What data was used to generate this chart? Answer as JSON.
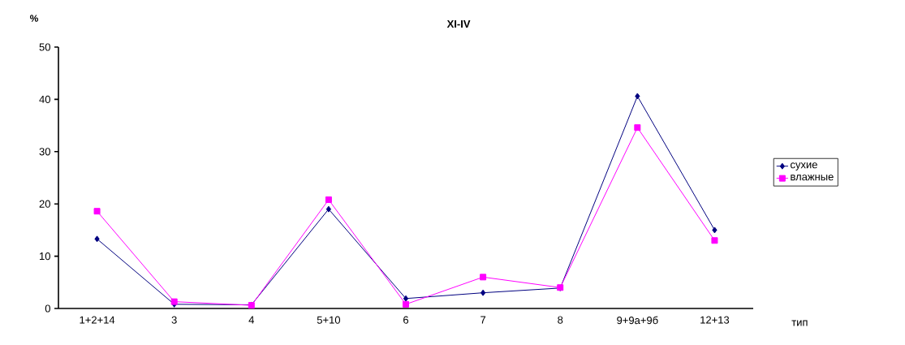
{
  "chart_data": {
    "type": "line",
    "title": "XI-IV",
    "xlabel": "тип",
    "ylabel": "%",
    "categories": [
      "1+2+14",
      "3",
      "4",
      "5+10",
      "6",
      "7",
      "8",
      "9+9а+9б",
      "12+13"
    ],
    "series": [
      {
        "name": "сухие",
        "color": "#000080",
        "marker": "diamond",
        "values": [
          13.3,
          0.8,
          0.7,
          19.0,
          1.9,
          3.0,
          3.9,
          40.6,
          15.0
        ]
      },
      {
        "name": "влажные",
        "color": "#ff00ff",
        "marker": "square",
        "values": [
          18.6,
          1.3,
          0.6,
          20.8,
          0.8,
          6.0,
          4.0,
          34.6,
          13.0
        ]
      }
    ],
    "ylim": [
      0,
      50
    ],
    "yticks": [
      0,
      10,
      20,
      30,
      40,
      50
    ],
    "grid": false,
    "legend": "right"
  }
}
